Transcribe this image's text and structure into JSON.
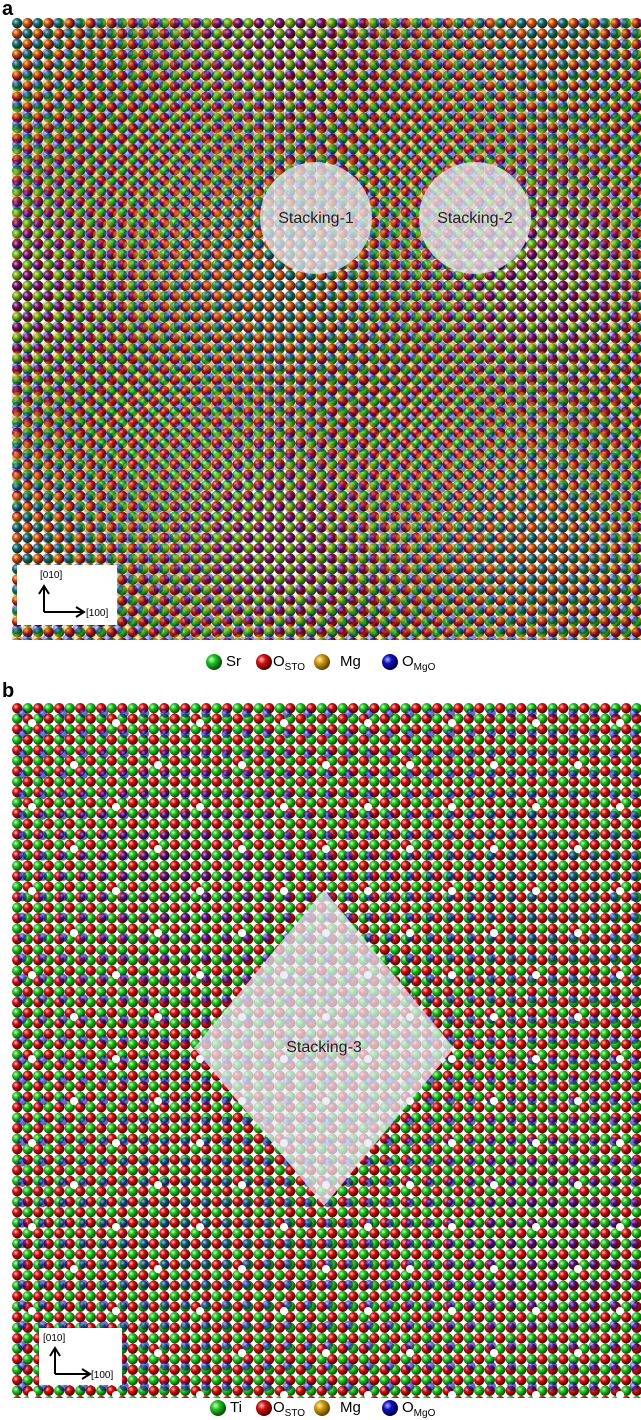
{
  "panels": [
    {
      "label": "a",
      "regions": [
        "Stacking-1",
        "Stacking-2"
      ],
      "axes": {
        "y": "[010]",
        "x": "[100]"
      },
      "legend": [
        {
          "symbol": "Sr"
        },
        {
          "symbol": "O",
          "subscript": "STO"
        },
        {
          "symbol": "Mg"
        },
        {
          "symbol": "O",
          "subscript": "MgO"
        }
      ]
    },
    {
      "label": "b",
      "regions": [
        "Stacking-3"
      ],
      "axes": {
        "y": "[010]",
        "x": "[100]"
      },
      "legend": [
        {
          "symbol": "Ti"
        },
        {
          "symbol": "O",
          "subscript": "STO"
        },
        {
          "symbol": "Mg"
        },
        {
          "symbol": "O",
          "subscript": "MgO"
        }
      ]
    }
  ]
}
